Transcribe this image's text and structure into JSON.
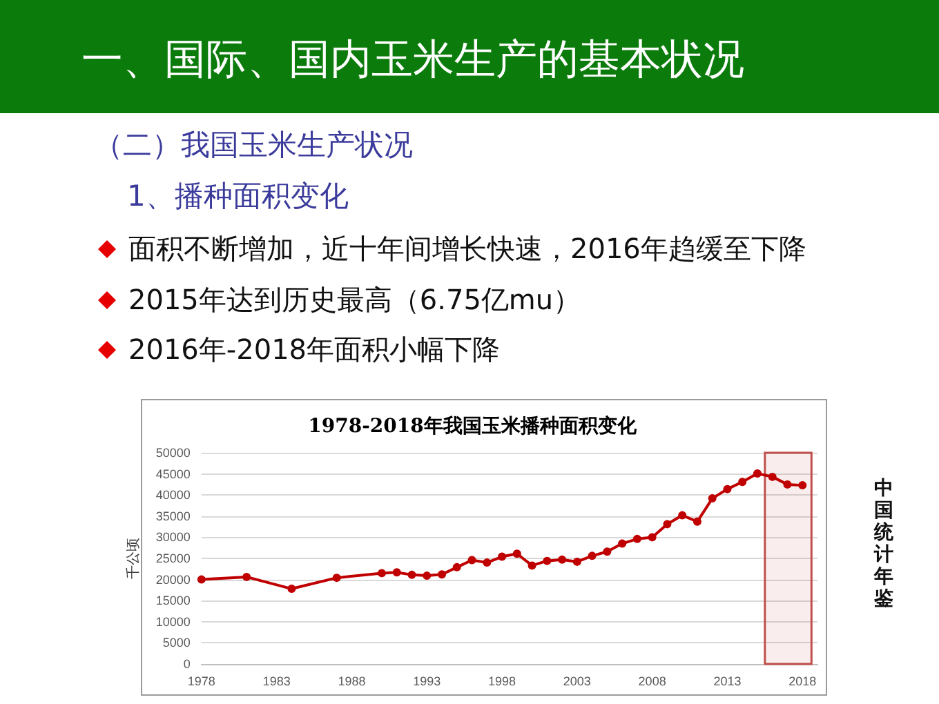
{
  "chart_data": {
    "type": "line",
    "title": "1978-2018年我国玉米播种面积变化",
    "ylabel": "千公顷",
    "x": [
      1978,
      1981,
      1984,
      1987,
      1990,
      1991,
      1992,
      1993,
      1994,
      1995,
      1996,
      1997,
      1998,
      1999,
      2000,
      2001,
      2002,
      2003,
      2004,
      2005,
      2006,
      2007,
      2008,
      2009,
      2010,
      2011,
      2012,
      2013,
      2014,
      2015,
      2016,
      2017,
      2018
    ],
    "series": [
      {
        "color": "#c00000",
        "values": [
          20000,
          20600,
          17800,
          20400,
          21500,
          21700,
          21100,
          20900,
          21200,
          22900,
          24600,
          24000,
          25400,
          26100,
          23300,
          24400,
          24700,
          24200,
          25600,
          26600,
          28500,
          29600,
          30000,
          33100,
          35200,
          33700,
          39200,
          41400,
          43100,
          45100,
          44300,
          42500,
          42300
        ]
      }
    ],
    "xlim": [
      1978,
      2019
    ],
    "xticks": [
      1978,
      1983,
      1988,
      1993,
      1998,
      2003,
      2008,
      2013,
      2018
    ],
    "ylim": [
      0,
      50000
    ],
    "yticks": [
      0,
      5000,
      10000,
      15000,
      20000,
      25000,
      30000,
      35000,
      40000,
      45000,
      50000
    ],
    "grid": "y",
    "marker": "circle",
    "line_style": "solid",
    "bands": [
      {
        "axis": "x",
        "from": 2015.5,
        "to": 2018.6,
        "color": "#c0504d"
      }
    ],
    "annotations": [
      "一、国际、国内玉米生产的基本状况",
      "（二）我国玉米生产状况",
      "1、播种面积变化",
      "面积不断增加，近十年间增长快速，2016年趋缓至下降",
      "2015年达到历史最高（6.75亿mu）",
      "2016年-2018年面积小幅下降",
      "中国统计年鉴"
    ]
  }
}
